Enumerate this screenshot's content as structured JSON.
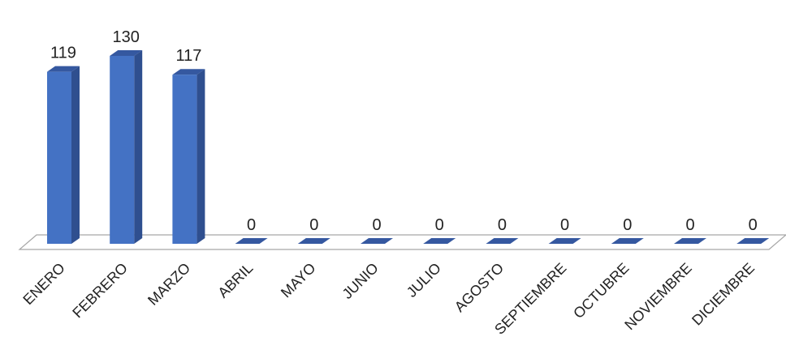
{
  "chart_data": {
    "type": "bar",
    "style": "3d-column",
    "categories": [
      "ENERO",
      "FEBRERO",
      "MARZO",
      "ABRIL",
      "MAYO",
      "JUNIO",
      "JULIO",
      "AGOSTO",
      "SEPTIEMBRE",
      "OCTUBRE",
      "NOVIEMBRE",
      "DICIEMBRE"
    ],
    "values": [
      119,
      130,
      117,
      0,
      0,
      0,
      0,
      0,
      0,
      0,
      0,
      0
    ],
    "data_labels": [
      "119",
      "130",
      "117",
      "0",
      "0",
      "0",
      "0",
      "0",
      "0",
      "0",
      "0",
      "0"
    ],
    "title": "",
    "xlabel": "",
    "ylabel": "",
    "ylim": [
      0,
      130
    ],
    "grid": false,
    "legend": "none",
    "colors": {
      "bar_front": "#4472C4",
      "bar_side": "#2F4F8F",
      "bar_top": "#3558A0",
      "floor": "#FFFFFF",
      "floor_edge": "#A6A6A6"
    }
  }
}
